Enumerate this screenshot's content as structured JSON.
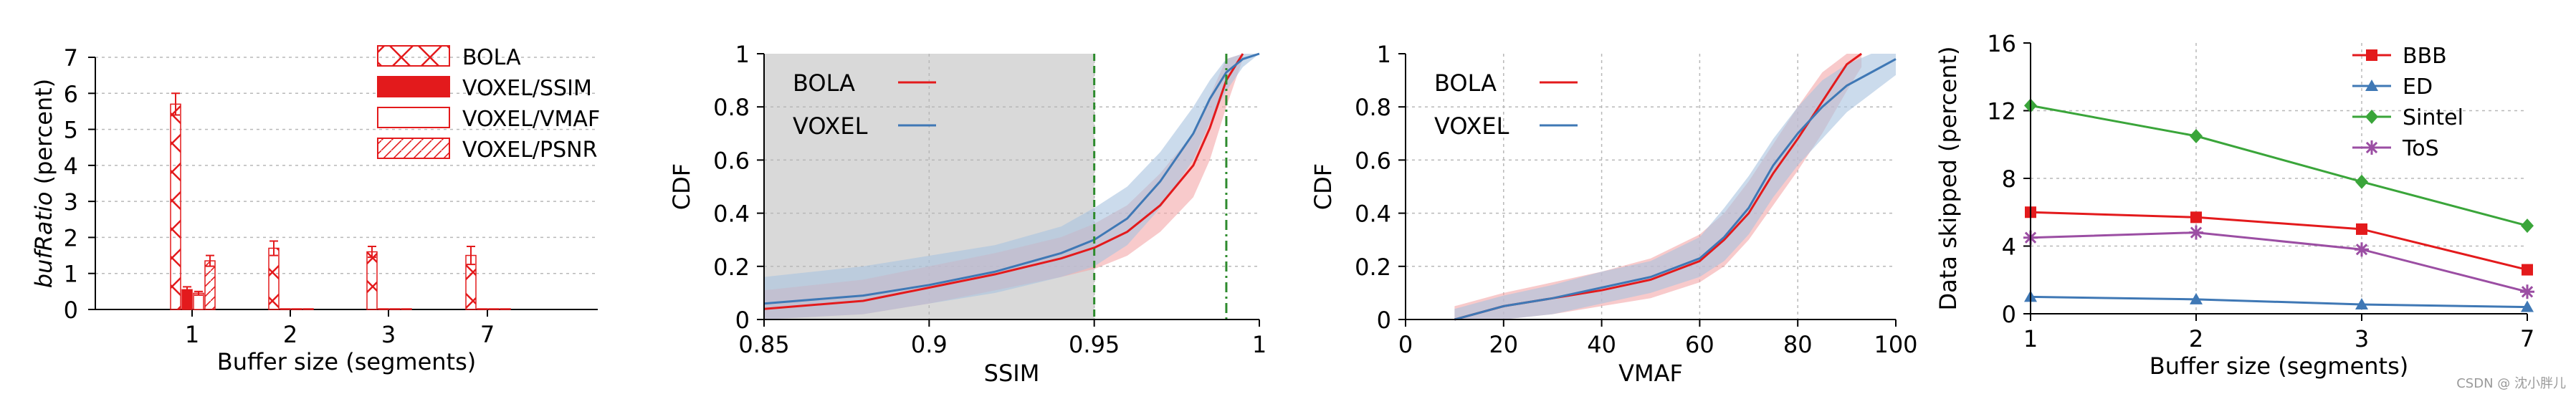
{
  "watermark": "CSDN @ 沈小胖儿",
  "colors": {
    "red": "#e31a1c",
    "red_band": "#f4a6a8",
    "blue": "#3f78b5",
    "blue_band": "#a9c3df",
    "green": "#3aa53a",
    "purple": "#9b4ea3",
    "shade": "#d9d9d9",
    "green_dash": "#2e8b2e",
    "grid": "#b8b8b8"
  },
  "chart_data": [
    {
      "id": "a",
      "type": "bar",
      "title": "",
      "xlabel": "Buffer size (segments)",
      "ylabel_italic": "bufRatio",
      "ylabel_rest": " (percent)",
      "categories": [
        "1",
        "2",
        "3",
        "7"
      ],
      "ylim": [
        0,
        7
      ],
      "yticks": [
        0,
        1,
        2,
        3,
        4,
        5,
        6,
        7
      ],
      "grid": "y",
      "legend_position": "top-right",
      "series": [
        {
          "name": "BOLA",
          "pattern": "cross",
          "values": [
            5.7,
            1.7,
            1.6,
            1.5
          ],
          "errors": [
            0.3,
            0.2,
            0.15,
            0.25
          ]
        },
        {
          "name": "VOXEL/SSIM",
          "pattern": "solid",
          "values": [
            0.55,
            0.02,
            0.02,
            0.02
          ],
          "errors": [
            0.08,
            0,
            0,
            0
          ]
        },
        {
          "name": "VOXEL/VMAF",
          "pattern": "hollow",
          "values": [
            0.45,
            0.02,
            0.02,
            0.02
          ],
          "errors": [
            0.05,
            0,
            0,
            0
          ]
        },
        {
          "name": "VOXEL/PSNR",
          "pattern": "diag",
          "values": [
            1.35,
            0.02,
            0.02,
            0.02
          ],
          "errors": [
            0.15,
            0,
            0,
            0
          ]
        }
      ]
    },
    {
      "id": "b",
      "type": "line",
      "xlabel": "SSIM",
      "ylabel": "CDF",
      "xlim": [
        0.85,
        1
      ],
      "ylim": [
        0,
        1
      ],
      "xticks": [
        0.85,
        0.9,
        0.95,
        1
      ],
      "xtick_labels": [
        "0.85",
        "0.9",
        "0.95",
        "1"
      ],
      "yticks": [
        0,
        0.2,
        0.4,
        0.6,
        0.8,
        1
      ],
      "ytick_labels": [
        "0",
        "0.2",
        "0.4",
        "0.6",
        "0.8",
        "1"
      ],
      "shaded_region": [
        0.85,
        0.95
      ],
      "vlines": [
        {
          "x": 0.95,
          "style": "dashed"
        },
        {
          "x": 0.99,
          "style": "dashdot"
        }
      ],
      "legend_position": "top-left",
      "series": [
        {
          "name": "BOLA",
          "x": [
            0.85,
            0.88,
            0.9,
            0.92,
            0.94,
            0.95,
            0.96,
            0.97,
            0.98,
            0.985,
            0.99,
            0.995
          ],
          "y": [
            0.04,
            0.07,
            0.12,
            0.17,
            0.23,
            0.27,
            0.33,
            0.43,
            0.58,
            0.72,
            0.9,
            1.0
          ],
          "band_low": [
            0.0,
            0.02,
            0.06,
            0.11,
            0.16,
            0.19,
            0.24,
            0.33,
            0.46,
            0.6,
            0.8,
            0.98
          ],
          "band_high": [
            0.11,
            0.15,
            0.2,
            0.25,
            0.31,
            0.36,
            0.43,
            0.55,
            0.7,
            0.84,
            0.98,
            1.0
          ]
        },
        {
          "name": "VOXEL",
          "x": [
            0.85,
            0.88,
            0.9,
            0.92,
            0.94,
            0.95,
            0.96,
            0.97,
            0.98,
            0.985,
            0.99,
            0.995,
            1.0
          ],
          "y": [
            0.06,
            0.09,
            0.13,
            0.18,
            0.25,
            0.3,
            0.38,
            0.52,
            0.7,
            0.83,
            0.93,
            0.98,
            1.0
          ],
          "band_low": [
            0.0,
            0.02,
            0.06,
            0.1,
            0.16,
            0.2,
            0.28,
            0.42,
            0.6,
            0.74,
            0.86,
            0.95,
            1.0
          ],
          "band_high": [
            0.16,
            0.2,
            0.24,
            0.28,
            0.35,
            0.42,
            0.5,
            0.63,
            0.8,
            0.9,
            0.98,
            1.0,
            1.0
          ]
        }
      ]
    },
    {
      "id": "c",
      "type": "line",
      "xlabel": "VMAF",
      "ylabel": "CDF",
      "xlim": [
        0,
        100
      ],
      "ylim": [
        0,
        1
      ],
      "xticks": [
        0,
        20,
        40,
        60,
        80,
        100
      ],
      "xtick_labels": [
        "0",
        "20",
        "40",
        "60",
        "80",
        "100"
      ],
      "yticks": [
        0,
        0.2,
        0.4,
        0.6,
        0.8,
        1
      ],
      "ytick_labels": [
        "0",
        "0.2",
        "0.4",
        "0.6",
        "0.8",
        "1"
      ],
      "legend_position": "top-left",
      "series": [
        {
          "name": "BOLA",
          "x": [
            10,
            20,
            30,
            40,
            50,
            60,
            65,
            70,
            75,
            80,
            85,
            90,
            93
          ],
          "y": [
            0.0,
            0.05,
            0.08,
            0.11,
            0.15,
            0.22,
            0.3,
            0.4,
            0.55,
            0.68,
            0.82,
            0.96,
            1.0
          ],
          "band_low": [
            0.0,
            0.0,
            0.02,
            0.05,
            0.08,
            0.14,
            0.2,
            0.3,
            0.43,
            0.56,
            0.7,
            0.86,
            0.95
          ],
          "band_high": [
            0.05,
            0.1,
            0.14,
            0.18,
            0.23,
            0.32,
            0.4,
            0.52,
            0.66,
            0.8,
            0.93,
            1.0,
            1.0
          ]
        },
        {
          "name": "VOXEL",
          "x": [
            10,
            20,
            30,
            40,
            50,
            60,
            65,
            70,
            75,
            80,
            85,
            90,
            95,
            100
          ],
          "y": [
            0.0,
            0.05,
            0.08,
            0.12,
            0.16,
            0.23,
            0.31,
            0.42,
            0.58,
            0.7,
            0.8,
            0.88,
            0.93,
            0.98
          ],
          "band_low": [
            0.0,
            0.0,
            0.02,
            0.06,
            0.1,
            0.16,
            0.22,
            0.32,
            0.46,
            0.58,
            0.68,
            0.78,
            0.85,
            0.92
          ],
          "band_high": [
            0.04,
            0.09,
            0.13,
            0.18,
            0.22,
            0.31,
            0.42,
            0.54,
            0.68,
            0.8,
            0.9,
            0.96,
            1.0,
            1.0
          ]
        }
      ]
    },
    {
      "id": "d",
      "type": "line",
      "xlabel": "Buffer size (segments)",
      "ylabel": "Data skipped (percent)",
      "categories": [
        "1",
        "2",
        "3",
        "7"
      ],
      "ylim": [
        0,
        16
      ],
      "yticks": [
        0,
        4,
        8,
        12,
        16
      ],
      "ytick_labels": [
        "0",
        "4",
        "8",
        "12",
        "16"
      ],
      "legend_position": "top-right",
      "series": [
        {
          "name": "BBB",
          "marker": "square",
          "color_key": "red",
          "values": [
            6.0,
            5.7,
            5.0,
            2.6
          ]
        },
        {
          "name": "ED",
          "marker": "triangle",
          "color_key": "blue",
          "values": [
            1.0,
            0.85,
            0.55,
            0.4
          ]
        },
        {
          "name": "Sintel",
          "marker": "diamond",
          "color_key": "green",
          "values": [
            12.3,
            10.5,
            7.8,
            5.2
          ]
        },
        {
          "name": "ToS",
          "marker": "star",
          "color_key": "purple",
          "values": [
            4.5,
            4.8,
            3.8,
            1.3
          ]
        }
      ]
    }
  ]
}
